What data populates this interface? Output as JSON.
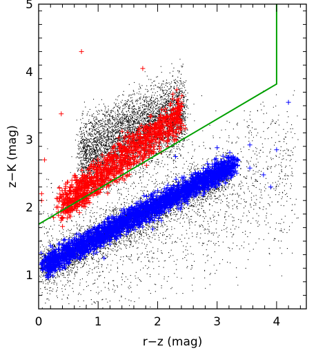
{
  "chart_data": {
    "type": "scatter",
    "title": "",
    "xlabel": "r−z (mag)",
    "ylabel": "z−K (mag)",
    "xlim": [
      0,
      4.5
    ],
    "ylim": [
      0.5,
      5.0
    ],
    "x_ticks": [
      0,
      1,
      2,
      3,
      4
    ],
    "y_ticks": [
      1,
      2,
      3,
      4,
      5
    ],
    "x_tick_labels": [
      "0",
      "1",
      "2",
      "3",
      "4"
    ],
    "y_tick_labels": [
      "1",
      "2",
      "3",
      "4",
      "5"
    ],
    "legend": "none",
    "grid": false,
    "series": [
      {
        "marker": "dot",
        "color": "#000000",
        "groups": [
          {
            "shape": "band",
            "x_range": [
              0.7,
              2.45
            ],
            "y_at_x_low": 2.75,
            "y_at_x_high": 3.45,
            "spread": 0.55,
            "count": 5000
          },
          {
            "shape": "band",
            "x_range": [
              0.05,
              3.2
            ],
            "y_at_x_low": 1.1,
            "y_at_x_high": 2.55,
            "spread": 0.28,
            "count": 3500
          },
          {
            "shape": "band",
            "x_range": [
              0.05,
              4.3
            ],
            "y_at_x_low": 1.2,
            "y_at_x_high": 2.6,
            "spread": 1.1,
            "count": 2000
          }
        ]
      },
      {
        "marker": "plus",
        "color": "#ff0000",
        "groups": [
          {
            "shape": "band",
            "x_range": [
              0.35,
              2.4
            ],
            "y_at_x_low": 2.0,
            "y_at_x_high": 3.4,
            "spread": 0.28,
            "count": 1100
          },
          {
            "shape": "points",
            "x": [
              0.72,
              1.75,
              0.38,
              0.1,
              0.05,
              0.05,
              2.38,
              0.25,
              0.3,
              0.42
            ],
            "y": [
              4.3,
              4.05,
              3.38,
              2.7,
              2.2,
              2.1,
              3.3,
              1.85,
              2.0,
              1.95
            ]
          }
        ]
      },
      {
        "marker": "plus",
        "color": "#0000ff",
        "groups": [
          {
            "shape": "band",
            "x_range": [
              0.1,
              3.3
            ],
            "y_at_x_low": 1.15,
            "y_at_x_high": 2.65,
            "spread": 0.17,
            "count": 2300
          },
          {
            "shape": "points",
            "x": [
              4.2,
              3.55,
              3.0,
              3.35,
              3.78,
              3.55,
              1.92,
              1.1,
              2.3,
              4.0,
              3.9
            ],
            "y": [
              3.55,
              2.92,
              2.88,
              2.7,
              2.48,
              2.58,
              1.68,
              1.25,
              2.75,
              2.85,
              2.3
            ]
          }
        ]
      }
    ],
    "lines": [
      {
        "color": "#00a000",
        "x": [
          0,
          4.0,
          4.0,
          4.0
        ],
        "y": [
          1.75,
          3.82,
          3.82,
          5.0
        ]
      }
    ]
  }
}
